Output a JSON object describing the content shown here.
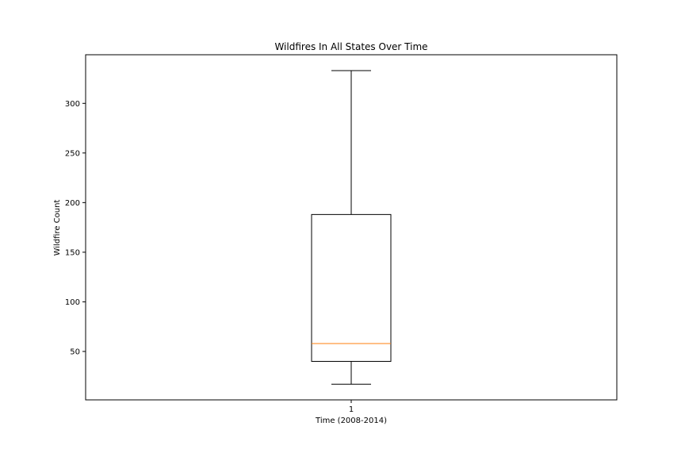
{
  "chart_data": {
    "type": "box",
    "title": "Wildfires In All States Over Time",
    "xlabel": "Time (2008-2014)",
    "ylabel": "Wildfire Count",
    "categories": [
      "1"
    ],
    "boxes": [
      {
        "category": "1",
        "whisker_low": 17,
        "q1": 40,
        "median": 58,
        "q3": 188,
        "whisker_high": 333
      }
    ],
    "y_ticks": [
      50,
      100,
      150,
      200,
      250,
      300
    ],
    "ylim": [
      1.2,
      349
    ],
    "grid": false,
    "colors": {
      "box": "#000000",
      "median": "#ff7f0e"
    }
  }
}
